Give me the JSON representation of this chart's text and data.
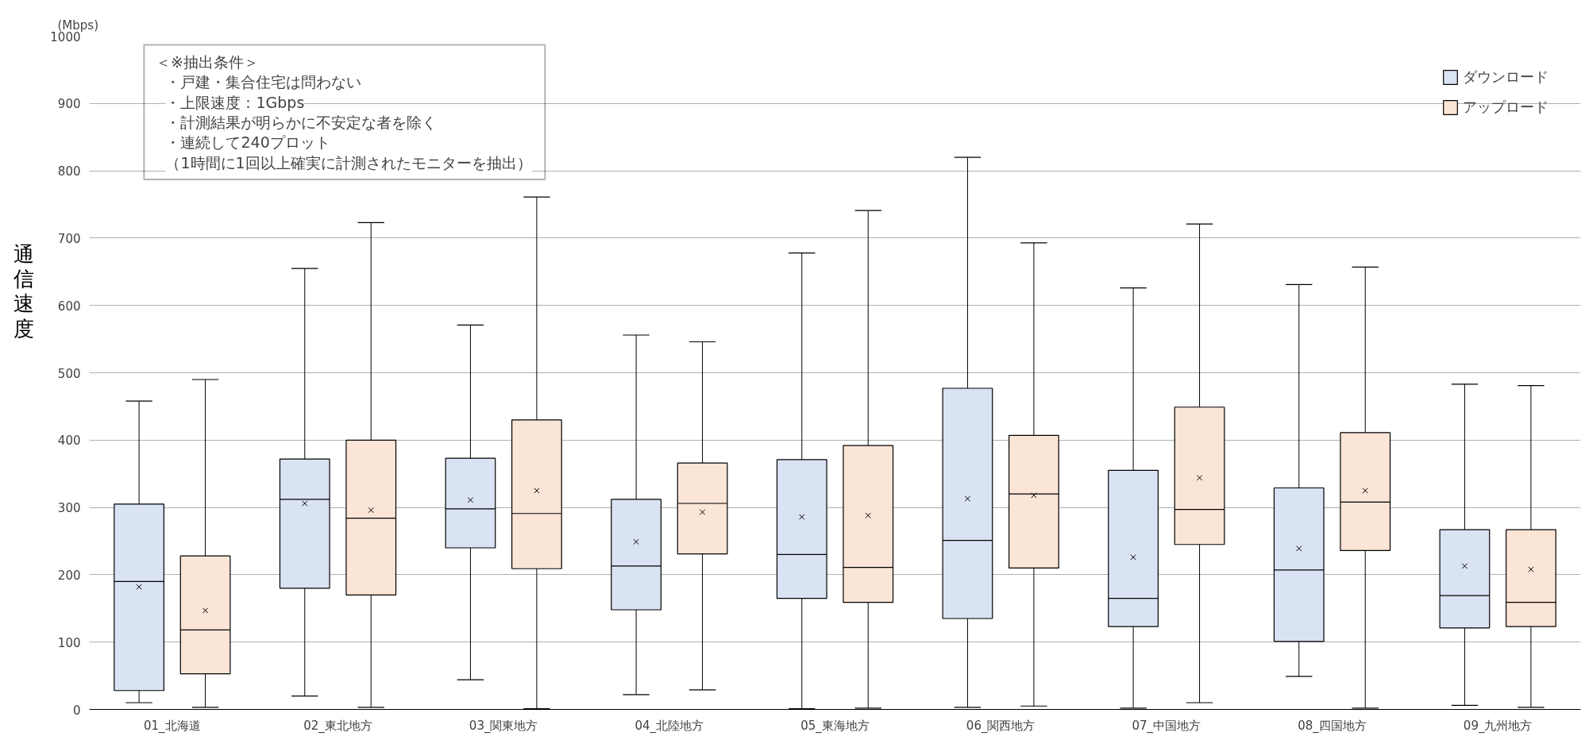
{
  "chart_data": {
    "type": "box",
    "ylabel": "通信速度",
    "categories": [
      "01_北海道",
      "02_東北地方",
      "03_関東地方",
      "04_北陸地方",
      "05_東海地方",
      "06_関西地方",
      "07_中国地方",
      "08_四国地方",
      "09_九州地方"
    ],
    "series": [
      {
        "name": "ダウンロード",
        "color": "#dae3f3",
        "boxes": [
          {
            "low": 10,
            "q1": 28,
            "median": 190,
            "q3": 305,
            "high": 458,
            "mean": 182
          },
          {
            "low": 20,
            "q1": 180,
            "median": 312,
            "q3": 372,
            "high": 655,
            "mean": 306
          },
          {
            "low": 44,
            "q1": 240,
            "median": 298,
            "q3": 373,
            "high": 571,
            "mean": 311
          },
          {
            "low": 22,
            "q1": 148,
            "median": 213,
            "q3": 312,
            "high": 556,
            "mean": 249
          },
          {
            "low": 1,
            "q1": 165,
            "median": 230,
            "q3": 371,
            "high": 678,
            "mean": 286
          },
          {
            "low": 3,
            "q1": 135,
            "median": 251,
            "q3": 477,
            "high": 820,
            "mean": 313
          },
          {
            "low": 2,
            "q1": 123,
            "median": 165,
            "q3": 355,
            "high": 626,
            "mean": 226
          },
          {
            "low": 49,
            "q1": 101,
            "median": 207,
            "q3": 329,
            "high": 631,
            "mean": 239
          },
          {
            "low": 6,
            "q1": 121,
            "median": 169,
            "q3": 267,
            "high": 483,
            "mean": 213
          }
        ]
      },
      {
        "name": "アップロード",
        "color": "#fbe5d6",
        "boxes": [
          {
            "low": 3,
            "q1": 53,
            "median": 118,
            "q3": 228,
            "high": 490,
            "mean": 147
          },
          {
            "low": 3,
            "q1": 170,
            "median": 284,
            "q3": 400,
            "high": 723,
            "mean": 296
          },
          {
            "low": 1,
            "q1": 209,
            "median": 291,
            "q3": 430,
            "high": 761,
            "mean": 325
          },
          {
            "low": 29,
            "q1": 231,
            "median": 306,
            "q3": 366,
            "high": 546,
            "mean": 293
          },
          {
            "low": 2,
            "q1": 159,
            "median": 211,
            "q3": 392,
            "high": 741,
            "mean": 288
          },
          {
            "low": 5,
            "q1": 210,
            "median": 320,
            "q3": 407,
            "high": 693,
            "mean": 318
          },
          {
            "low": 10,
            "q1": 245,
            "median": 297,
            "q3": 449,
            "high": 721,
            "mean": 344
          },
          {
            "low": 2,
            "q1": 236,
            "median": 308,
            "q3": 411,
            "high": 657,
            "mean": 325
          },
          {
            "low": 3,
            "q1": 123,
            "median": 159,
            "q3": 267,
            "high": 481,
            "mean": 208
          }
        ]
      }
    ],
    "ylim": [
      0,
      1000
    ],
    "yticks": [
      0,
      100,
      200,
      300,
      400,
      500,
      600,
      700,
      800,
      900,
      1000
    ],
    "grid": "y",
    "legend": "top right",
    "marker": "cross",
    "annotations": [
      "(Mbps)",
      "＜※抽出条件＞",
      "・戸建・集合住宅は問わない",
      "・上限速度：1Gbps",
      "・計測結果が明らかに不安定な者を除く",
      "・連続して240プロット",
      "（1時間に1回以上確実に計測されたモニターを抽出）"
    ]
  }
}
